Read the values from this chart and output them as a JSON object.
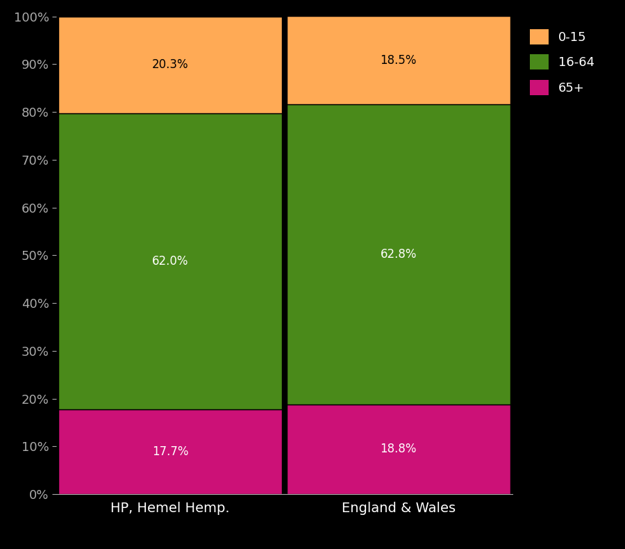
{
  "categories": [
    "HP, Hemel Hemp.",
    "England & Wales"
  ],
  "segments": [
    {
      "label": "65+",
      "values": [
        17.7,
        18.8
      ],
      "color": "#CC1177"
    },
    {
      "label": "16-64",
      "values": [
        62.0,
        62.8
      ],
      "color": "#4A8A1A"
    },
    {
      "label": "0-15",
      "values": [
        20.3,
        18.5
      ],
      "color": "#FFAA55"
    }
  ],
  "annotations": [
    {
      "bar": 0,
      "segment": "0-15",
      "text": "20.3%",
      "color": "black"
    },
    {
      "bar": 1,
      "segment": "0-15",
      "text": "18.5%",
      "color": "black"
    },
    {
      "bar": 0,
      "segment": "16-64",
      "text": "62.0%",
      "color": "white"
    },
    {
      "bar": 1,
      "segment": "16-64",
      "text": "62.8%",
      "color": "white"
    },
    {
      "bar": 0,
      "segment": "65+",
      "text": "17.7%",
      "color": "white"
    },
    {
      "bar": 1,
      "segment": "65+",
      "text": "18.8%",
      "color": "white"
    }
  ],
  "background_color": "#000000",
  "tick_color": "#aaaaaa",
  "label_color": "#ffffff",
  "bar_edge_color": "#000000",
  "ylim": [
    0,
    100
  ],
  "ytick_labels": [
    "0%",
    "10%",
    "20%",
    "30%",
    "40%",
    "50%",
    "60%",
    "70%",
    "80%",
    "90%",
    "100%"
  ],
  "ytick_values": [
    0,
    10,
    20,
    30,
    40,
    50,
    60,
    70,
    80,
    90,
    100
  ],
  "bar_width": 0.98,
  "font_size_ticks": 13,
  "font_size_labels": 14,
  "font_size_legend": 13,
  "font_size_annot": 12,
  "legend_items": [
    "0-15",
    "16-64",
    "65+"
  ],
  "legend_colors": [
    "#FFAA55",
    "#4A8A1A",
    "#CC1177"
  ],
  "figsize": [
    9.0,
    7.9
  ],
  "dpi": 100
}
